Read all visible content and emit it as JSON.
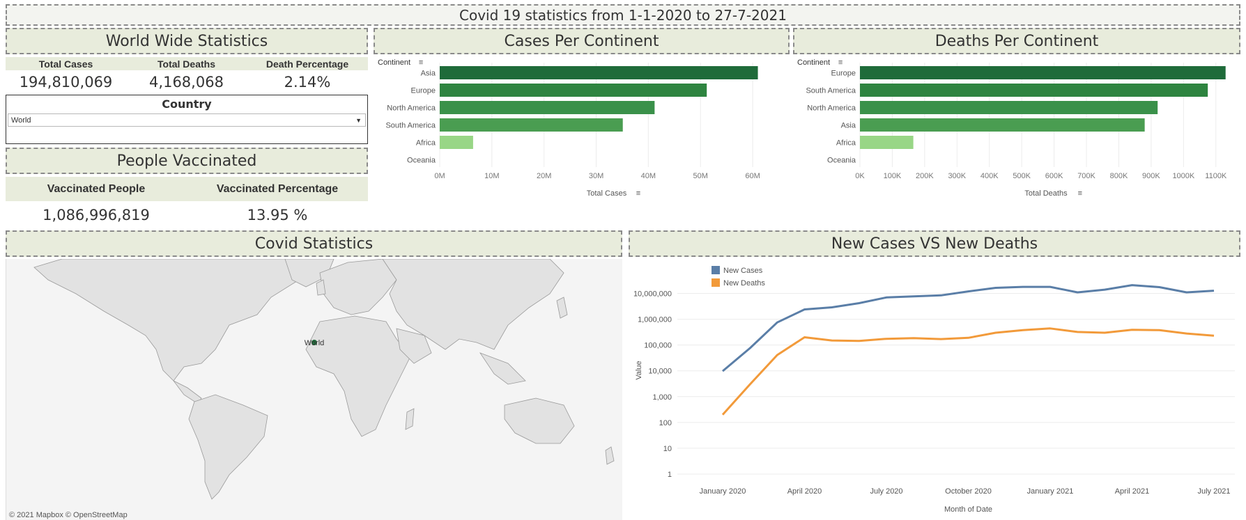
{
  "header": {
    "title": "Covid 19 statistics from 1-1-2020 to 27-7-2021"
  },
  "world_stats": {
    "title": "World Wide Statistics",
    "headers": [
      "Total Cases",
      "Total Deaths",
      "Death Percentage"
    ],
    "values": [
      "194,810,069",
      "4,168,068",
      "2.14%"
    ]
  },
  "country_filter": {
    "label": "Country",
    "selected": "World"
  },
  "vaccinated": {
    "title": "People Vaccinated",
    "headers": [
      "Vaccinated People",
      "Vaccinated Percentage"
    ],
    "values": [
      "1,086,996,819",
      "13.95 %"
    ]
  },
  "map": {
    "title": "Covid Statistics",
    "marker_label": "World",
    "attribution": "© 2021 Mapbox  © OpenStreetMap",
    "colors": {
      "land": "#e2e2e2",
      "border": "#9a9a9a",
      "water": "#f4f4f4",
      "marker": "#1f6b3a"
    }
  },
  "colors": {
    "bar_dark": "#1f6b3a",
    "bar_mid1": "#2e8440",
    "bar_mid2": "#3a914a",
    "bar_mid3": "#4a9d51",
    "bar_light": "#98d686",
    "line_cases": "#5a7ea7",
    "line_deaths": "#f29a3a",
    "grid": "#ececec"
  },
  "chart_data": [
    {
      "type": "bar",
      "orientation": "horizontal",
      "title": "Cases Per Continent",
      "ylabel": "Continent",
      "xlabel": "Total Cases",
      "categories": [
        "Asia",
        "Europe",
        "North America",
        "South America",
        "Africa",
        "Oceania"
      ],
      "values": [
        61000000,
        51200000,
        41200000,
        35100000,
        6400000,
        0
      ],
      "xlim": [
        0,
        64000000
      ],
      "ticks": [
        0,
        10000000,
        20000000,
        30000000,
        40000000,
        50000000,
        60000000
      ],
      "tick_labels": [
        "0M",
        "10M",
        "20M",
        "30M",
        "40M",
        "50M",
        "60M"
      ]
    },
    {
      "type": "bar",
      "orientation": "horizontal",
      "title": "Deaths Per Continent",
      "ylabel": "Continent",
      "xlabel": "Total Deaths",
      "categories": [
        "Europe",
        "South America",
        "North America",
        "Asia",
        "Africa",
        "Oceania"
      ],
      "values": [
        1130000,
        1075000,
        920000,
        880000,
        165000,
        0
      ],
      "xlim": [
        0,
        1150000
      ],
      "ticks": [
        0,
        100000,
        200000,
        300000,
        400000,
        500000,
        600000,
        700000,
        800000,
        900000,
        1000000,
        1100000
      ],
      "tick_labels": [
        "0K",
        "100K",
        "200K",
        "300K",
        "400K",
        "500K",
        "600K",
        "700K",
        "800K",
        "900K",
        "1000K",
        "1100K"
      ]
    },
    {
      "type": "line",
      "title": "New Cases VS New Deaths",
      "xlabel": "Month of Date",
      "ylabel": "Value",
      "yscale": "log",
      "x": [
        "2020-01",
        "2020-02",
        "2020-03",
        "2020-04",
        "2020-05",
        "2020-06",
        "2020-07",
        "2020-08",
        "2020-09",
        "2020-10",
        "2020-11",
        "2020-12",
        "2021-01",
        "2021-02",
        "2021-03",
        "2021-04",
        "2021-05",
        "2021-06",
        "2021-07"
      ],
      "x_tick_labels": [
        "January 2020",
        "April 2020",
        "July 2020",
        "October 2020",
        "January 2021",
        "April 2021",
        "July 2021"
      ],
      "x_tick_index": [
        0,
        3,
        6,
        9,
        12,
        15,
        18
      ],
      "y_tick_labels": [
        "1",
        "10",
        "100",
        "1,000",
        "10,000",
        "100,000",
        "1,000,000",
        "10,000,000"
      ],
      "y_ticks": [
        1,
        10,
        100,
        1000,
        10000,
        100000,
        1000000,
        10000000
      ],
      "series": [
        {
          "name": "New Cases",
          "values": [
            9800,
            76000,
            750000,
            2400000,
            2900000,
            4200000,
            7000000,
            7700000,
            8400000,
            12000000,
            16500000,
            18000000,
            18000000,
            11000000,
            14000000,
            21000000,
            17500000,
            11000000,
            12800000
          ]
        },
        {
          "name": "New Deaths",
          "values": [
            200,
            3000,
            41000,
            200000,
            150000,
            145000,
            175000,
            185000,
            170000,
            190000,
            300000,
            380000,
            440000,
            320000,
            300000,
            390000,
            380000,
            280000,
            230000
          ]
        }
      ]
    }
  ]
}
